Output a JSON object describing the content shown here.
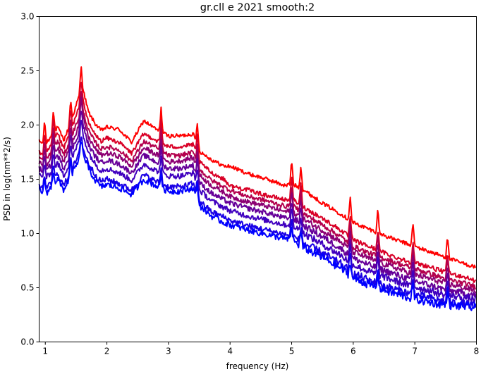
{
  "chart_data": {
    "type": "line",
    "title": "gr.cll e 2021 smooth:2",
    "xlabel": "frequency (Hz)",
    "ylabel": "PSD in log(nm**2/s)",
    "xlim": [
      0.9,
      8.0
    ],
    "ylim": [
      0.0,
      3.0
    ],
    "xticks": [
      1,
      2,
      3,
      4,
      5,
      6,
      7,
      8
    ],
    "yticks": [
      0.0,
      0.5,
      1.0,
      1.5,
      2.0,
      2.5,
      3.0
    ],
    "xtick_labels": [
      "1",
      "2",
      "3",
      "4",
      "5",
      "6",
      "7",
      "8"
    ],
    "ytick_labels": [
      "0.0",
      "0.5",
      "1.0",
      "1.5",
      "2.0",
      "2.5",
      "3.0"
    ],
    "grid": false,
    "legend": "none",
    "spike_frequencies": [
      0.99,
      1.13,
      1.41,
      1.58,
      2.88,
      3.47,
      5.0,
      5.15,
      5.95,
      6.4,
      6.97,
      7.53
    ],
    "series": [
      {
        "color": "#ff0000",
        "x": [
          0.9,
          1.0,
          1.1,
          1.2,
          1.3,
          1.4,
          1.5,
          1.6,
          1.7,
          1.8,
          1.9,
          2.0,
          2.2,
          2.4,
          2.6,
          2.8,
          3.0,
          3.2,
          3.4,
          3.5,
          3.7,
          3.9,
          4.0,
          4.3,
          4.6,
          4.9,
          5.0,
          5.2,
          5.5,
          5.8,
          6.0,
          6.3,
          6.6,
          6.9,
          7.2,
          7.5,
          7.8,
          8.0
        ],
        "y": [
          1.85,
          1.82,
          1.9,
          1.98,
          1.86,
          2.0,
          2.18,
          2.36,
          2.12,
          2.02,
          1.95,
          1.98,
          1.96,
          1.84,
          2.04,
          1.96,
          1.9,
          1.9,
          1.92,
          1.76,
          1.68,
          1.62,
          1.62,
          1.55,
          1.5,
          1.44,
          1.46,
          1.4,
          1.28,
          1.18,
          1.1,
          1.03,
          0.96,
          0.9,
          0.84,
          0.78,
          0.72,
          0.69
        ]
      },
      {
        "color": "#d90026",
        "x": [
          0.9,
          1.0,
          1.1,
          1.2,
          1.3,
          1.4,
          1.5,
          1.6,
          1.7,
          1.8,
          1.9,
          2.0,
          2.2,
          2.4,
          2.6,
          2.8,
          3.0,
          3.2,
          3.4,
          3.5,
          3.7,
          3.9,
          4.0,
          4.3,
          4.6,
          4.9,
          5.0,
          5.2,
          5.5,
          5.8,
          6.0,
          6.3,
          6.6,
          6.9,
          7.2,
          7.5,
          7.8,
          8.0
        ],
        "y": [
          1.75,
          1.72,
          1.82,
          1.92,
          1.78,
          1.94,
          2.08,
          2.26,
          2.02,
          1.92,
          1.85,
          1.88,
          1.84,
          1.74,
          1.92,
          1.86,
          1.8,
          1.8,
          1.82,
          1.66,
          1.56,
          1.5,
          1.44,
          1.4,
          1.35,
          1.31,
          1.32,
          1.24,
          1.14,
          1.03,
          0.94,
          0.87,
          0.8,
          0.74,
          0.7,
          0.64,
          0.6,
          0.56
        ]
      },
      {
        "color": "#b3004d",
        "x": [
          0.9,
          1.0,
          1.1,
          1.2,
          1.3,
          1.4,
          1.5,
          1.6,
          1.7,
          1.8,
          1.9,
          2.0,
          2.2,
          2.4,
          2.6,
          2.8,
          3.0,
          3.2,
          3.4,
          3.5,
          3.7,
          3.9,
          4.0,
          4.3,
          4.6,
          4.9,
          5.0,
          5.2,
          5.5,
          5.8,
          6.0,
          6.3,
          6.6,
          6.9,
          7.2,
          7.5,
          7.8,
          8.0
        ],
        "y": [
          1.7,
          1.66,
          1.76,
          1.85,
          1.72,
          1.86,
          2.0,
          2.16,
          1.95,
          1.85,
          1.78,
          1.8,
          1.77,
          1.67,
          1.85,
          1.79,
          1.72,
          1.72,
          1.75,
          1.59,
          1.49,
          1.43,
          1.4,
          1.34,
          1.3,
          1.25,
          1.26,
          1.18,
          1.08,
          0.97,
          0.88,
          0.81,
          0.75,
          0.69,
          0.64,
          0.58,
          0.54,
          0.51
        ]
      },
      {
        "color": "#8c0073",
        "x": [
          0.9,
          1.0,
          1.1,
          1.2,
          1.3,
          1.4,
          1.5,
          1.6,
          1.7,
          1.8,
          1.9,
          2.0,
          2.2,
          2.4,
          2.6,
          2.8,
          3.0,
          3.2,
          3.4,
          3.5,
          3.7,
          3.9,
          4.0,
          4.3,
          4.6,
          4.9,
          5.0,
          5.2,
          5.5,
          5.8,
          6.0,
          6.3,
          6.6,
          6.9,
          7.2,
          7.5,
          7.8,
          8.0
        ],
        "y": [
          1.66,
          1.62,
          1.7,
          1.79,
          1.66,
          1.8,
          1.93,
          2.1,
          1.89,
          1.79,
          1.72,
          1.74,
          1.71,
          1.62,
          1.79,
          1.73,
          1.66,
          1.67,
          1.7,
          1.54,
          1.44,
          1.38,
          1.34,
          1.29,
          1.25,
          1.2,
          1.21,
          1.13,
          1.03,
          0.92,
          0.83,
          0.76,
          0.7,
          0.64,
          0.59,
          0.54,
          0.5,
          0.47
        ]
      },
      {
        "color": "#660099",
        "x": [
          0.9,
          1.0,
          1.1,
          1.2,
          1.3,
          1.4,
          1.5,
          1.6,
          1.7,
          1.8,
          1.9,
          2.0,
          2.2,
          2.4,
          2.6,
          2.8,
          3.0,
          3.2,
          3.4,
          3.5,
          3.7,
          3.9,
          4.0,
          4.3,
          4.6,
          4.9,
          5.0,
          5.2,
          5.5,
          5.8,
          6.0,
          6.3,
          6.6,
          6.9,
          7.2,
          7.5,
          7.8,
          8.0
        ],
        "y": [
          1.6,
          1.56,
          1.64,
          1.72,
          1.6,
          1.73,
          1.86,
          2.02,
          1.82,
          1.72,
          1.65,
          1.68,
          1.64,
          1.56,
          1.72,
          1.66,
          1.6,
          1.6,
          1.63,
          1.47,
          1.37,
          1.31,
          1.28,
          1.23,
          1.19,
          1.14,
          1.15,
          1.07,
          0.97,
          0.86,
          0.77,
          0.7,
          0.64,
          0.58,
          0.53,
          0.48,
          0.45,
          0.43
        ]
      },
      {
        "color": "#4000bf",
        "x": [
          0.9,
          1.0,
          1.1,
          1.2,
          1.3,
          1.4,
          1.5,
          1.6,
          1.7,
          1.8,
          1.9,
          2.0,
          2.2,
          2.4,
          2.6,
          2.8,
          3.0,
          3.2,
          3.4,
          3.5,
          3.7,
          3.9,
          4.0,
          4.3,
          4.6,
          4.9,
          5.0,
          5.2,
          5.5,
          5.8,
          6.0,
          6.3,
          6.6,
          6.9,
          7.2,
          7.5,
          7.8,
          8.0
        ],
        "y": [
          1.54,
          1.5,
          1.57,
          1.65,
          1.53,
          1.66,
          1.78,
          1.93,
          1.75,
          1.65,
          1.58,
          1.6,
          1.56,
          1.49,
          1.64,
          1.58,
          1.53,
          1.53,
          1.56,
          1.4,
          1.3,
          1.24,
          1.21,
          1.16,
          1.12,
          1.08,
          1.08,
          1.0,
          0.9,
          0.8,
          0.71,
          0.64,
          0.58,
          0.52,
          0.48,
          0.43,
          0.41,
          0.39
        ]
      },
      {
        "color": "#1a00e6",
        "x": [
          0.9,
          1.0,
          1.1,
          1.2,
          1.3,
          1.4,
          1.5,
          1.6,
          1.7,
          1.8,
          1.9,
          2.0,
          2.2,
          2.4,
          2.6,
          2.8,
          3.0,
          3.2,
          3.4,
          3.5,
          3.7,
          3.9,
          4.0,
          4.3,
          4.6,
          4.9,
          5.0,
          5.2,
          5.5,
          5.8,
          6.0,
          6.3,
          6.6,
          6.9,
          7.2,
          7.5,
          7.8,
          8.0
        ],
        "y": [
          1.44,
          1.4,
          1.47,
          1.55,
          1.44,
          1.56,
          1.67,
          1.8,
          1.65,
          1.55,
          1.48,
          1.5,
          1.46,
          1.4,
          1.54,
          1.48,
          1.43,
          1.43,
          1.46,
          1.3,
          1.2,
          1.15,
          1.12,
          1.07,
          1.03,
          0.99,
          0.98,
          0.91,
          0.82,
          0.72,
          0.63,
          0.56,
          0.5,
          0.45,
          0.41,
          0.37,
          0.35,
          0.33
        ]
      },
      {
        "color": "#0000ff",
        "x": [
          0.9,
          1.0,
          1.1,
          1.2,
          1.3,
          1.4,
          1.5,
          1.6,
          1.7,
          1.8,
          1.9,
          2.0,
          2.2,
          2.4,
          2.6,
          2.8,
          3.0,
          3.2,
          3.4,
          3.5,
          3.7,
          3.9,
          4.0,
          4.3,
          4.6,
          4.9,
          5.0,
          5.2,
          5.5,
          5.8,
          6.0,
          6.3,
          6.6,
          6.9,
          7.2,
          7.5,
          7.8,
          8.0
        ],
        "y": [
          1.41,
          1.36,
          1.43,
          1.5,
          1.4,
          1.52,
          1.62,
          1.76,
          1.6,
          1.5,
          1.43,
          1.45,
          1.42,
          1.36,
          1.5,
          1.44,
          1.39,
          1.39,
          1.42,
          1.26,
          1.16,
          1.1,
          1.08,
          1.03,
          0.99,
          0.95,
          0.94,
          0.87,
          0.78,
          0.68,
          0.59,
          0.52,
          0.46,
          0.41,
          0.37,
          0.34,
          0.33,
          0.31
        ]
      }
    ]
  }
}
